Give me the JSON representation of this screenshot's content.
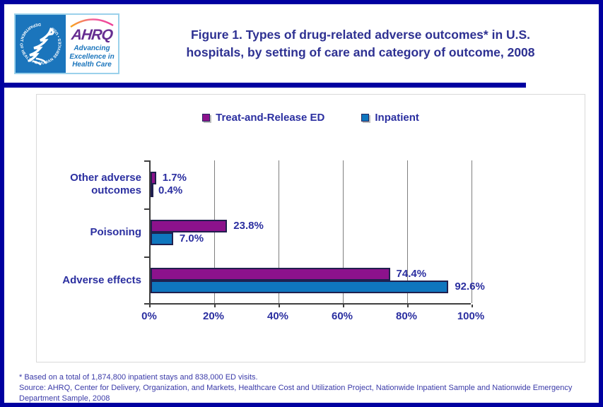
{
  "header": {
    "logo": {
      "hhs_circle_text": "DEPARTMENT OF HEALTH & HUMAN SERVICES • USA",
      "ahrq_acronym": "AHRQ",
      "tagline_line1": "Advancing",
      "tagline_line2": "Excellence in",
      "tagline_line3": "Health Care"
    },
    "title_line1": "Figure 1. Types of drug-related adverse outcomes* in U.S.",
    "title_line2": "hospitals, by setting of care and category of outcome, 2008"
  },
  "chart_data": {
    "type": "bar",
    "orientation": "horizontal",
    "title": "Figure 1. Types of drug-related adverse outcomes in U.S. hospitals, by setting of care and category of outcome, 2008",
    "categories": [
      "Other adverse outcomes",
      "Poisoning",
      "Adverse effects"
    ],
    "series": [
      {
        "name": "Treat-and-Release ED",
        "color": "#8C128C",
        "values": [
          1.7,
          23.8,
          74.4
        ]
      },
      {
        "name": "Inpatient",
        "color": "#0F76BE",
        "values": [
          0.4,
          7.0,
          92.6
        ]
      }
    ],
    "value_labels": [
      [
        "1.7%",
        "23.8%",
        "74.4%"
      ],
      [
        "0.4%",
        "7.0%",
        "92.6%"
      ]
    ],
    "x_ticks": [
      "0%",
      "20%",
      "40%",
      "60%",
      "80%",
      "100%"
    ],
    "xlim": [
      0,
      100
    ],
    "xlabel": "",
    "ylabel": "",
    "grid": true,
    "legend_position": "top"
  },
  "footer": {
    "footnote": "* Based on a total of 1,874,800 inpatient stays and 838,000 ED visits.",
    "source": "Source: AHRQ,  Center for Delivery, Organization, and Markets, Healthcare Cost and Utilization Project, Nationwide Inpatient Sample and Nationwide Emergency Department Sample, 2008"
  },
  "colors": {
    "frame_border": "#0000A0",
    "title_text": "#2E3192",
    "chart_text": "#2B2FA0",
    "footer_text": "#3A3AA8",
    "series_ed": "#8C128C",
    "series_inpatient": "#0F76BE",
    "bar_border": "#20204E",
    "gridline": "#7F7F7F",
    "hhs_blue": "#1B75BC",
    "ahrq_purple": "#662D91"
  }
}
